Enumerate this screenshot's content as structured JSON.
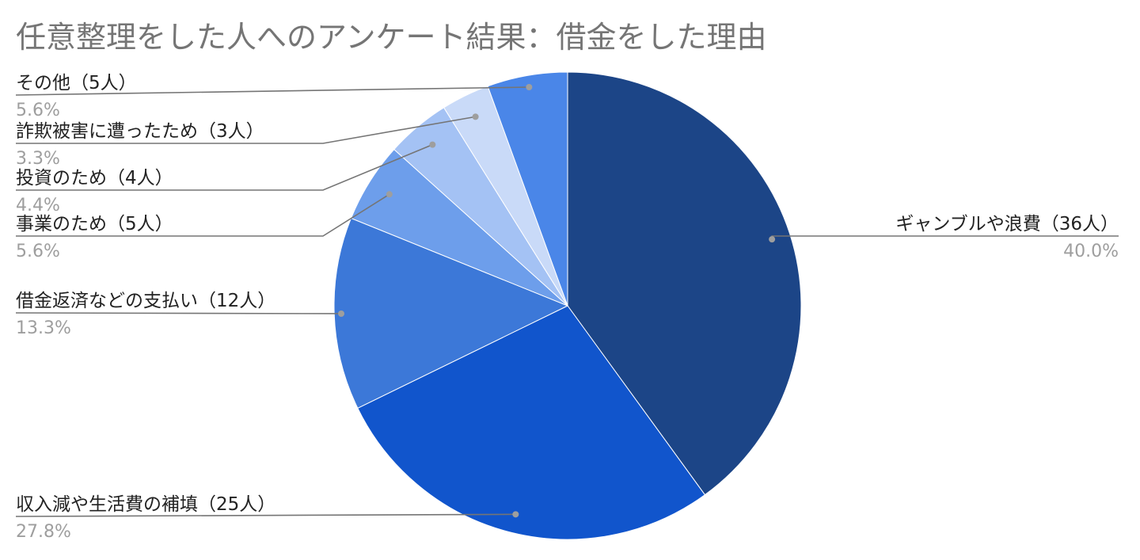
{
  "chart_data": {
    "type": "pie",
    "title": "任意整理をした人へのアンケート結果：借金をした理由",
    "start_angle": "12 o'clock",
    "direction": "clockwise",
    "slices": [
      {
        "label": "ギャンブルや浪費（36人）",
        "value": 36,
        "percent_label": "40.0%",
        "color": "#1c4587"
      },
      {
        "label": "収入減や生活費の補填（25人）",
        "value": 25,
        "percent_label": "27.8%",
        "color": "#1155cc"
      },
      {
        "label": "借金返済などの支払い（12人）",
        "value": 12,
        "percent_label": "13.3%",
        "color": "#3c78d8"
      },
      {
        "label": "事業のため（5人）",
        "value": 5,
        "percent_label": "5.6%",
        "color": "#6d9eeb"
      },
      {
        "label": "投資のため（4人）",
        "value": 4,
        "percent_label": "4.4%",
        "color": "#a4c2f4"
      },
      {
        "label": "詐欺被害に遭ったため（3人）",
        "value": 3,
        "percent_label": "3.3%",
        "color": "#c9daf8"
      },
      {
        "label": "その他（5人）",
        "value": 5,
        "percent_label": "5.6%",
        "color": "#4a86e8"
      }
    ]
  }
}
